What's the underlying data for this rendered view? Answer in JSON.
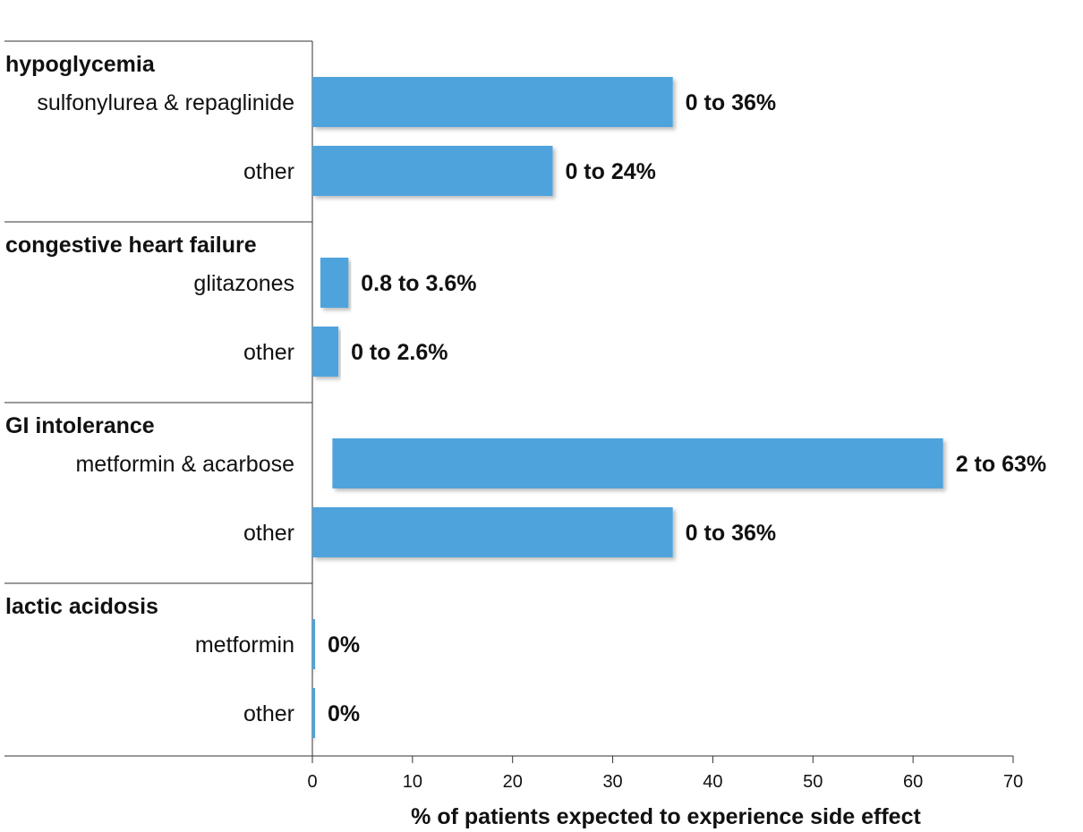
{
  "chart_data": {
    "type": "bar",
    "orientation": "horizontal",
    "title": "",
    "xlabel": "% of patients expected to experience side effect",
    "xlim": [
      0,
      70
    ],
    "xticks": [
      0,
      10,
      20,
      30,
      40,
      50,
      60,
      70
    ],
    "grid": false,
    "bar_color": "#4FA3DC",
    "groups": [
      {
        "label": "hypoglycemia",
        "bars": [
          {
            "label": "sulfonylurea & repaglinide",
            "low": 0,
            "high": 36,
            "value_label": "0 to 36%"
          },
          {
            "label": "other",
            "low": 0,
            "high": 24,
            "value_label": "0 to 24%"
          }
        ]
      },
      {
        "label": "congestive heart failure",
        "bars": [
          {
            "label": "glitazones",
            "low": 0.8,
            "high": 3.6,
            "value_label": "0.8 to 3.6%"
          },
          {
            "label": "other",
            "low": 0,
            "high": 2.6,
            "value_label": "0 to 2.6%"
          }
        ]
      },
      {
        "label": "GI intolerance",
        "bars": [
          {
            "label": "metformin & acarbose",
            "low": 2,
            "high": 63,
            "value_label": "2 to 63%"
          },
          {
            "label": "other",
            "low": 0,
            "high": 36,
            "value_label": "0 to 36%"
          }
        ]
      },
      {
        "label": "lactic acidosis",
        "bars": [
          {
            "label": "metformin",
            "low": 0,
            "high": 0,
            "value_label": "0%"
          },
          {
            "label": "other",
            "low": 0,
            "high": 0,
            "value_label": "0%"
          }
        ]
      }
    ]
  }
}
